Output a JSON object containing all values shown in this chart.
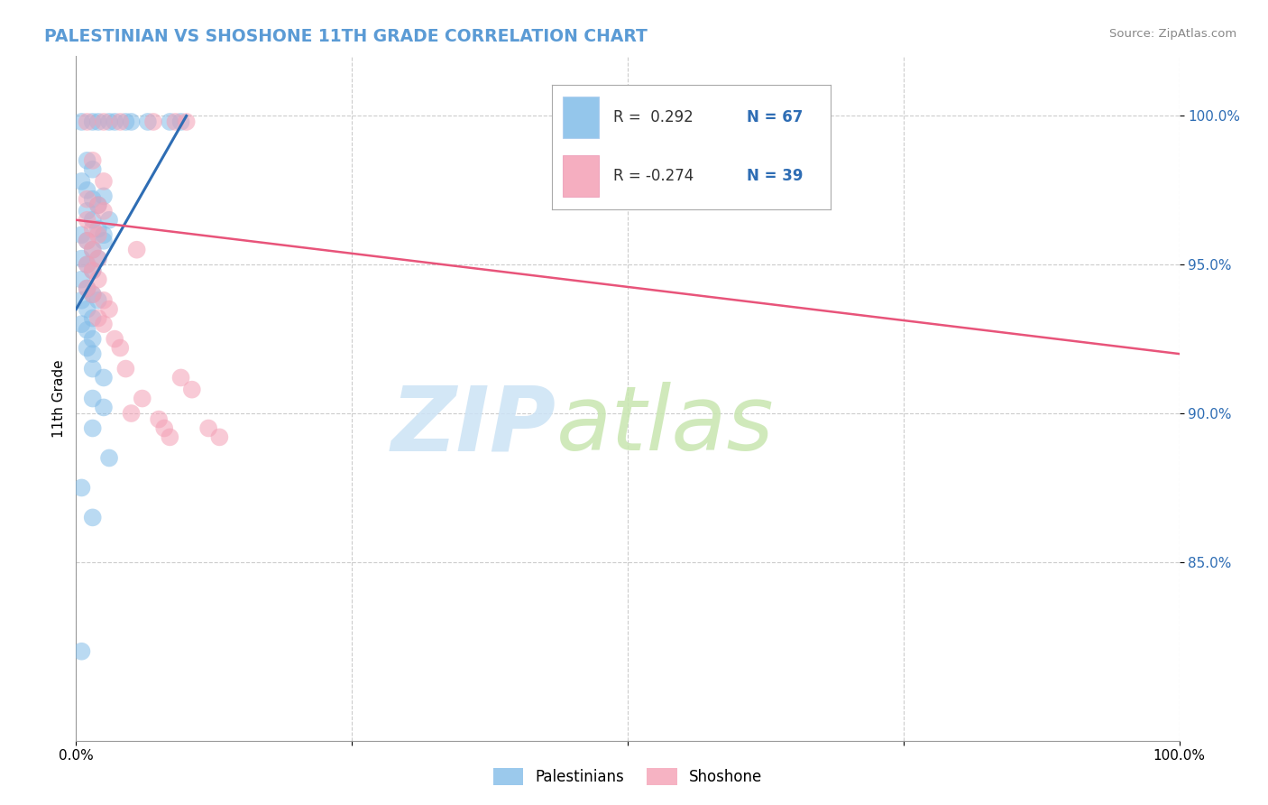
{
  "title": "PALESTINIAN VS SHOSHONE 11TH GRADE CORRELATION CHART",
  "source": "Source: ZipAtlas.com",
  "ylabel": "11th Grade",
  "blue_color": "#82bce8",
  "pink_color": "#f4a0b5",
  "blue_line_color": "#2e6db4",
  "pink_line_color": "#e8547a",
  "title_color": "#5b9bd5",
  "r_n_color": "#2e6db4",
  "watermark_zip_color": "#cce3f5",
  "watermark_atlas_color": "#c8e6b0",
  "blue_points": [
    [
      0.5,
      99.8
    ],
    [
      1.5,
      99.8
    ],
    [
      2.0,
      99.8
    ],
    [
      3.0,
      99.8
    ],
    [
      3.5,
      99.8
    ],
    [
      4.5,
      99.8
    ],
    [
      5.0,
      99.8
    ],
    [
      6.5,
      99.8
    ],
    [
      8.5,
      99.8
    ],
    [
      9.5,
      99.8
    ],
    [
      1.0,
      98.5
    ],
    [
      1.5,
      98.2
    ],
    [
      0.5,
      97.8
    ],
    [
      1.0,
      97.5
    ],
    [
      1.5,
      97.2
    ],
    [
      2.0,
      97.0
    ],
    [
      2.5,
      97.3
    ],
    [
      1.0,
      96.8
    ],
    [
      1.5,
      96.5
    ],
    [
      2.0,
      96.2
    ],
    [
      2.5,
      96.0
    ],
    [
      3.0,
      96.5
    ],
    [
      0.5,
      96.0
    ],
    [
      1.0,
      95.8
    ],
    [
      1.5,
      95.5
    ],
    [
      2.0,
      95.2
    ],
    [
      2.5,
      95.8
    ],
    [
      0.5,
      95.2
    ],
    [
      1.0,
      95.0
    ],
    [
      1.5,
      94.8
    ],
    [
      0.5,
      94.5
    ],
    [
      1.0,
      94.2
    ],
    [
      1.5,
      94.0
    ],
    [
      2.0,
      93.8
    ],
    [
      0.5,
      93.8
    ],
    [
      1.0,
      93.5
    ],
    [
      1.5,
      93.2
    ],
    [
      0.5,
      93.0
    ],
    [
      1.0,
      92.8
    ],
    [
      1.5,
      92.5
    ],
    [
      1.0,
      92.2
    ],
    [
      1.5,
      92.0
    ],
    [
      1.5,
      91.5
    ],
    [
      2.5,
      91.2
    ],
    [
      1.5,
      90.5
    ],
    [
      2.5,
      90.2
    ],
    [
      1.5,
      89.5
    ],
    [
      3.0,
      88.5
    ],
    [
      0.5,
      87.5
    ],
    [
      1.5,
      86.5
    ],
    [
      0.5,
      82.0
    ]
  ],
  "pink_points": [
    [
      1.0,
      99.8
    ],
    [
      2.5,
      99.8
    ],
    [
      4.0,
      99.8
    ],
    [
      7.0,
      99.8
    ],
    [
      9.0,
      99.8
    ],
    [
      10.0,
      99.8
    ],
    [
      1.5,
      98.5
    ],
    [
      2.5,
      97.8
    ],
    [
      1.0,
      97.2
    ],
    [
      2.0,
      97.0
    ],
    [
      2.5,
      96.8
    ],
    [
      1.0,
      96.5
    ],
    [
      1.5,
      96.2
    ],
    [
      2.0,
      96.0
    ],
    [
      1.0,
      95.8
    ],
    [
      1.5,
      95.5
    ],
    [
      2.0,
      95.2
    ],
    [
      1.0,
      95.0
    ],
    [
      1.5,
      94.8
    ],
    [
      2.0,
      94.5
    ],
    [
      1.0,
      94.2
    ],
    [
      1.5,
      94.0
    ],
    [
      2.5,
      93.8
    ],
    [
      3.0,
      93.5
    ],
    [
      2.0,
      93.2
    ],
    [
      2.5,
      93.0
    ],
    [
      3.5,
      92.5
    ],
    [
      4.0,
      92.2
    ],
    [
      5.5,
      95.5
    ],
    [
      9.5,
      91.2
    ],
    [
      10.5,
      90.8
    ],
    [
      7.5,
      89.8
    ],
    [
      8.0,
      89.5
    ],
    [
      5.0,
      90.0
    ],
    [
      4.5,
      91.5
    ],
    [
      6.0,
      90.5
    ],
    [
      8.5,
      89.2
    ],
    [
      12.0,
      89.5
    ],
    [
      13.0,
      89.2
    ]
  ],
  "xlim": [
    0,
    100
  ],
  "ylim": [
    79,
    102
  ],
  "yticks": [
    85.0,
    90.0,
    95.0,
    100.0
  ],
  "ytick_labels": [
    "85.0%",
    "90.0%",
    "95.0%",
    "100.0%"
  ],
  "xticks": [
    0,
    25,
    50,
    75,
    100
  ],
  "xtick_labels": [
    "0.0%",
    "",
    "",
    "",
    "100.0%"
  ],
  "blue_trend_x": [
    0,
    10
  ],
  "blue_trend_y_start": 93.5,
  "blue_trend_y_end": 100.0,
  "pink_trend_x": [
    0,
    100
  ],
  "pink_trend_y_start": 96.5,
  "pink_trend_y_end": 92.0
}
